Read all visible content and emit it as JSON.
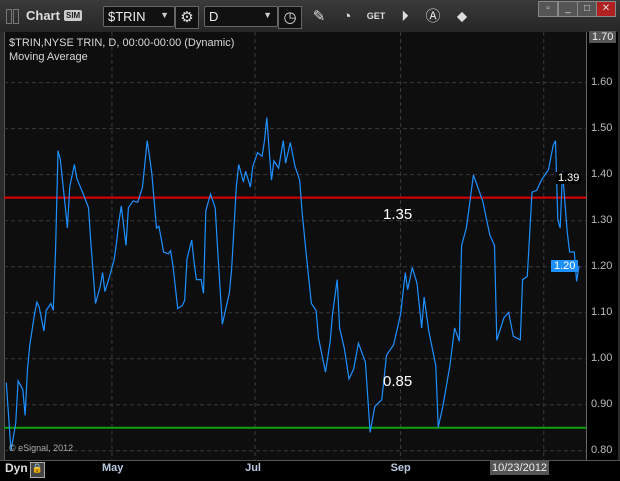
{
  "window": {
    "title": "Chart",
    "sim_badge": "SIM",
    "symbol": "$TRIN",
    "interval": "D",
    "controls": [
      "minimize-icon",
      "restore-icon",
      "maximize-icon",
      "close-icon"
    ]
  },
  "toolbar_icons": [
    "gear-icon",
    "clock-icon",
    "pencil-icon",
    "study-icon",
    "get-icon",
    "play-icon",
    "alert-icon",
    "link-icon"
  ],
  "legend": {
    "line1": "$TRIN,NYSE TRIN, D, 00:00-00:00 (Dynamic)",
    "line2": "Moving Average"
  },
  "copyright": "© eSignal, 2012",
  "bottom": {
    "dyn_label": "Dyn",
    "cursor_date": "10/23/2012"
  },
  "colors": {
    "series": "#1e90ff",
    "upper_line": "#e00000",
    "lower_line": "#10a010",
    "background": "#0e0e0e"
  },
  "chart_data": {
    "type": "line",
    "title": "",
    "xlabel": "",
    "ylabel": "",
    "x_ticks": [
      {
        "label": "May",
        "date": "2012-05-01"
      },
      {
        "label": "Jul",
        "date": "2012-07-01"
      },
      {
        "label": "Sep",
        "date": "2012-09-01"
      },
      {
        "label": "",
        "date": "2012-11-01"
      }
    ],
    "xlim": [
      "2012-03-16",
      "2012-11-19"
    ],
    "ylim": [
      0.78,
      1.71
    ],
    "y_ticks": [
      "0.80",
      "0.90",
      "1.00",
      "1.10",
      "1.20",
      "1.30",
      "1.40",
      "1.50",
      "1.60",
      "1.70"
    ],
    "grid": true,
    "axis_side": "right",
    "last_value_tag": "1.20",
    "other_tag": "1.39",
    "top_tag": "1.70",
    "hlines": [
      {
        "value": 1.35,
        "label": "1.35",
        "color": "#e00000"
      },
      {
        "value": 0.85,
        "label": "0.85",
        "color": "#10a010"
      }
    ],
    "series": [
      {
        "points": [
          [
            "2012-03-17",
            0.948
          ],
          [
            "2012-03-19",
            0.8
          ],
          [
            "2012-03-21",
            0.859
          ],
          [
            "2012-03-22",
            0.952
          ],
          [
            "2012-03-24",
            0.933
          ],
          [
            "2012-03-25",
            0.877
          ],
          [
            "2012-03-26",
            0.978
          ],
          [
            "2012-03-27",
            1.03
          ],
          [
            "2012-03-29",
            1.097
          ],
          [
            "2012-03-30",
            1.123
          ],
          [
            "2012-03-31",
            1.112
          ],
          [
            "2012-04-02",
            1.06
          ],
          [
            "2012-04-03",
            1.105
          ],
          [
            "2012-04-05",
            1.12
          ],
          [
            "2012-04-06",
            1.105
          ],
          [
            "2012-04-07",
            1.239
          ],
          [
            "2012-04-08",
            1.452
          ],
          [
            "2012-04-09",
            1.433
          ],
          [
            "2012-04-11",
            1.336
          ],
          [
            "2012-04-12",
            1.284
          ],
          [
            "2012-04-13",
            1.373
          ],
          [
            "2012-04-15",
            1.422
          ],
          [
            "2012-04-16",
            1.392
          ],
          [
            "2012-04-19",
            1.355
          ],
          [
            "2012-04-21",
            1.328
          ],
          [
            "2012-04-22",
            1.254
          ],
          [
            "2012-04-24",
            1.12
          ],
          [
            "2012-04-26",
            1.157
          ],
          [
            "2012-04-27",
            1.187
          ],
          [
            "2012-04-28",
            1.146
          ],
          [
            "2012-04-30",
            1.179
          ],
          [
            "2012-05-02",
            1.217
          ],
          [
            "2012-05-03",
            1.254
          ],
          [
            "2012-05-04",
            1.299
          ],
          [
            "2012-05-05",
            1.332
          ],
          [
            "2012-05-07",
            1.246
          ],
          [
            "2012-05-08",
            1.328
          ],
          [
            "2012-05-10",
            1.343
          ],
          [
            "2012-05-12",
            1.34
          ],
          [
            "2012-05-14",
            1.373
          ],
          [
            "2012-05-16",
            1.474
          ],
          [
            "2012-05-17",
            1.44
          ],
          [
            "2012-05-18",
            1.403
          ],
          [
            "2012-05-20",
            1.284
          ],
          [
            "2012-05-21",
            1.288
          ],
          [
            "2012-05-23",
            1.232
          ],
          [
            "2012-05-25",
            1.228
          ],
          [
            "2012-05-26",
            1.235
          ],
          [
            "2012-05-27",
            1.202
          ],
          [
            "2012-05-29",
            1.109
          ],
          [
            "2012-05-31",
            1.116
          ],
          [
            "2012-06-01",
            1.127
          ],
          [
            "2012-06-02",
            1.217
          ],
          [
            "2012-06-04",
            1.258
          ],
          [
            "2012-06-05",
            1.209
          ],
          [
            "2012-06-06",
            1.172
          ],
          [
            "2012-06-08",
            1.172
          ],
          [
            "2012-06-09",
            1.142
          ],
          [
            "2012-06-10",
            1.321
          ],
          [
            "2012-06-12",
            1.358
          ],
          [
            "2012-06-14",
            1.328
          ],
          [
            "2012-06-15",
            1.239
          ],
          [
            "2012-06-17",
            1.075
          ],
          [
            "2012-06-18",
            1.097
          ],
          [
            "2012-06-20",
            1.142
          ],
          [
            "2012-06-21",
            1.194
          ],
          [
            "2012-06-23",
            1.373
          ],
          [
            "2012-06-24",
            1.422
          ],
          [
            "2012-06-26",
            1.384
          ],
          [
            "2012-06-27",
            1.407
          ],
          [
            "2012-06-29",
            1.373
          ],
          [
            "2012-06-30",
            1.418
          ],
          [
            "2012-07-02",
            1.448
          ],
          [
            "2012-07-04",
            1.44
          ],
          [
            "2012-07-05",
            1.474
          ],
          [
            "2012-07-06",
            1.524
          ],
          [
            "2012-07-07",
            1.452
          ],
          [
            "2012-07-08",
            1.388
          ],
          [
            "2012-07-09",
            1.43
          ],
          [
            "2012-07-11",
            1.414
          ],
          [
            "2012-07-13",
            1.474
          ],
          [
            "2012-07-14",
            1.425
          ],
          [
            "2012-07-16",
            1.47
          ],
          [
            "2012-07-18",
            1.418
          ],
          [
            "2012-07-20",
            1.388
          ],
          [
            "2012-07-21",
            1.321
          ],
          [
            "2012-07-23",
            1.217
          ],
          [
            "2012-07-25",
            1.12
          ],
          [
            "2012-07-27",
            1.105
          ],
          [
            "2012-07-28",
            1.045
          ],
          [
            "2012-07-31",
            0.971
          ],
          [
            "2012-08-02",
            1.038
          ],
          [
            "2012-08-03",
            1.097
          ],
          [
            "2012-08-05",
            1.172
          ],
          [
            "2012-08-06",
            1.067
          ],
          [
            "2012-08-08",
            1.023
          ],
          [
            "2012-08-10",
            0.956
          ],
          [
            "2012-08-12",
            0.978
          ],
          [
            "2012-08-14",
            1.034
          ],
          [
            "2012-08-17",
            0.993
          ],
          [
            "2012-08-19",
            0.84
          ],
          [
            "2012-08-21",
            0.896
          ],
          [
            "2012-08-24",
            0.911
          ],
          [
            "2012-08-26",
            1.008
          ],
          [
            "2012-08-29",
            1.03
          ],
          [
            "2012-09-01",
            1.097
          ],
          [
            "2012-09-03",
            1.187
          ],
          [
            "2012-09-04",
            1.15
          ],
          [
            "2012-09-06",
            1.198
          ],
          [
            "2012-09-08",
            1.164
          ],
          [
            "2012-09-10",
            1.067
          ],
          [
            "2012-09-11",
            1.134
          ],
          [
            "2012-09-13",
            1.06
          ],
          [
            "2012-09-16",
            0.985
          ],
          [
            "2012-09-17",
            0.851
          ],
          [
            "2012-09-19",
            0.896
          ],
          [
            "2012-09-22",
            0.985
          ],
          [
            "2012-09-24",
            1.067
          ],
          [
            "2012-09-26",
            1.038
          ],
          [
            "2012-09-27",
            1.246
          ],
          [
            "2012-09-29",
            1.284
          ],
          [
            "2012-09-30",
            1.321
          ],
          [
            "2012-10-02",
            1.399
          ],
          [
            "2012-10-06",
            1.343
          ],
          [
            "2012-10-09",
            1.269
          ],
          [
            "2012-10-11",
            1.246
          ],
          [
            "2012-10-12",
            1.04
          ],
          [
            "2012-10-15",
            1.089
          ],
          [
            "2012-10-17",
            1.101
          ],
          [
            "2012-10-19",
            1.049
          ],
          [
            "2012-10-22",
            1.041
          ],
          [
            "2012-10-23",
            1.172
          ],
          [
            "2012-10-25",
            1.179
          ],
          [
            "2012-10-27",
            1.362
          ],
          [
            "2012-10-29",
            1.366
          ],
          [
            "2012-10-31",
            1.388
          ],
          [
            "2012-11-03",
            1.411
          ],
          [
            "2012-11-05",
            1.463
          ],
          [
            "2012-11-06",
            1.474
          ],
          [
            "2012-11-07",
            1.302
          ],
          [
            "2012-11-08",
            1.284
          ],
          [
            "2012-11-09",
            1.407
          ],
          [
            "2012-11-11",
            1.276
          ],
          [
            "2012-11-12",
            1.232
          ],
          [
            "2012-11-14",
            1.232
          ],
          [
            "2012-11-15",
            1.168
          ],
          [
            "2012-11-16",
            1.202
          ]
        ]
      }
    ]
  }
}
